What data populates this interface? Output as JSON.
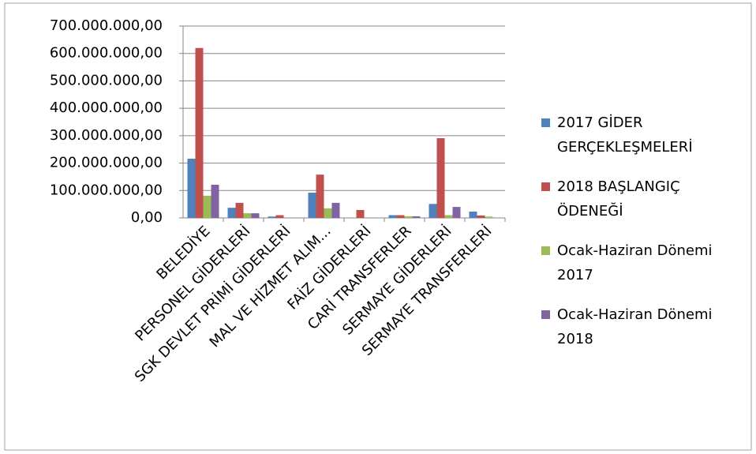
{
  "chart_data": {
    "type": "bar",
    "categories": [
      "BELEDİYE",
      "PERSONEL GİDERLERİ",
      "SGK DEVLET PRİMİ GİDERLERİ",
      "MAL VE HİZMET ALIM...",
      "FAİZ GİDERLERİ",
      "CARİ TRANSFERLER",
      "SERMAYE GİDERLERİ",
      "SERMAYE TRANSFERLERİ"
    ],
    "series": [
      {
        "name": "2017 GİDER GERÇEKLEŞMELERİ",
        "color": "#4f81bd",
        "values": [
          216000000,
          37000000,
          5000000,
          92000000,
          0,
          10000000,
          51000000,
          23000000
        ]
      },
      {
        "name": "2018 BAŞLANGIÇ ÖDENEĞİ",
        "color": "#c0504d",
        "values": [
          620000000,
          55000000,
          10000000,
          158000000,
          29000000,
          10000000,
          291000000,
          9000000
        ]
      },
      {
        "name": "Ocak-Haziran Dönemi 2017",
        "color": "#9bbb59",
        "values": [
          81000000,
          17000000,
          0,
          35000000,
          0,
          6000000,
          10000000,
          5000000
        ]
      },
      {
        "name": "Ocak-Haziran Dönemi 2018",
        "color": "#8064a2",
        "values": [
          121000000,
          17000000,
          0,
          55000000,
          0,
          6000000,
          40000000,
          0
        ]
      }
    ],
    "ylim": [
      0,
      700000000
    ],
    "yticks": [
      {
        "value": 0,
        "label": "0,00"
      },
      {
        "value": 100000000,
        "label": "100.000.000,00"
      },
      {
        "value": 200000000,
        "label": "200.000.000,00"
      },
      {
        "value": 300000000,
        "label": "300.000.000,00"
      },
      {
        "value": 400000000,
        "label": "400.000.000,00"
      },
      {
        "value": 500000000,
        "label": "500.000.000,00"
      },
      {
        "value": 600000000,
        "label": "600.000.000,00"
      },
      {
        "value": 700000000,
        "label": "700.000.000,00"
      }
    ],
    "grid": true,
    "legend": "right"
  }
}
